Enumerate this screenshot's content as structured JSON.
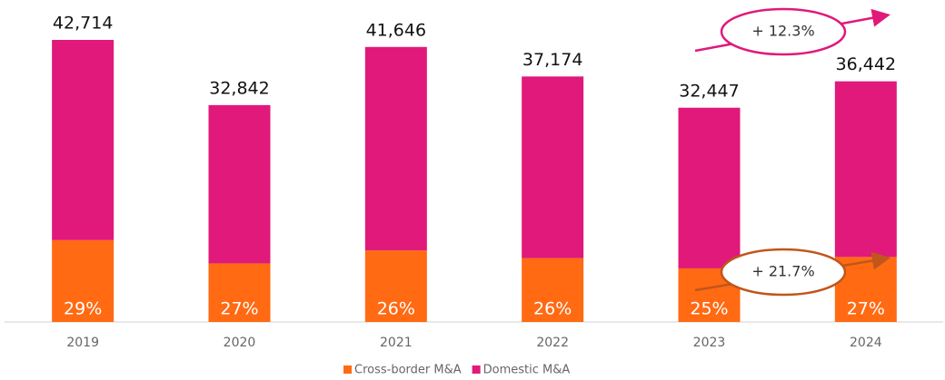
{
  "chart_data": {
    "type": "stacked_bar",
    "categories": [
      "2019",
      "2020",
      "2021",
      "2022",
      "2023",
      "2024"
    ],
    "series": [
      {
        "name": "Cross-border M&A",
        "color": "#ff6a13",
        "values": [
          12387,
          8867,
          10828,
          9665,
          8112,
          9839
        ],
        "shares": [
          29,
          27,
          26,
          26,
          25,
          27
        ],
        "share_labels": [
          "29%",
          "27%",
          "26%",
          "26%",
          "25%",
          "27%"
        ]
      },
      {
        "name": "Domestic M&A",
        "color": "#e0197a",
        "values": [
          30327,
          23975,
          30818,
          27509,
          24335,
          26603
        ]
      }
    ],
    "totals": [
      42714,
      32842,
      41646,
      37174,
      32447,
      36442
    ],
    "total_labels": [
      "42,714",
      "32,842",
      "41,646",
      "37,174",
      "32,447",
      "36,442"
    ],
    "annotations": [
      "+ 12.3%",
      "+ 21.7%"
    ]
  }
}
